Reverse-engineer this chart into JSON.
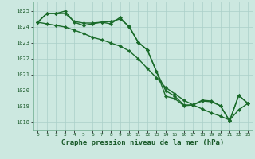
{
  "xlabel": "Graphe pression niveau de la mer (hPa)",
  "background_color": "#cce8e0",
  "grid_color": "#aacfc8",
  "line_color": "#1a6b2a",
  "xlim": [
    -0.5,
    23.5
  ],
  "ylim": [
    1017.5,
    1025.6
  ],
  "yticks": [
    1018,
    1019,
    1020,
    1021,
    1022,
    1023,
    1024,
    1025
  ],
  "xticks": [
    0,
    1,
    2,
    3,
    4,
    5,
    6,
    7,
    8,
    9,
    10,
    11,
    12,
    13,
    14,
    15,
    16,
    17,
    18,
    19,
    20,
    21,
    22,
    23
  ],
  "line1": [
    1024.3,
    1024.85,
    1024.85,
    1024.85,
    1024.35,
    1024.25,
    1024.25,
    1024.3,
    1024.35,
    1024.5,
    1024.05,
    1023.05,
    1022.55,
    1021.2,
    1019.65,
    1019.5,
    1019.05,
    1019.1,
    1019.35,
    1019.3,
    1019.05,
    1018.1,
    1019.7,
    1019.2
  ],
  "line2": [
    1024.3,
    1024.85,
    1024.85,
    1025.0,
    1024.3,
    1024.1,
    1024.2,
    1024.3,
    1024.2,
    1024.6,
    1024.0,
    1023.05,
    1022.55,
    1021.2,
    1020.0,
    1019.65,
    1019.1,
    1019.1,
    1019.4,
    1019.35,
    1019.05,
    1018.1,
    1019.7,
    1019.2
  ],
  "line3": [
    1024.3,
    1024.2,
    1024.1,
    1024.0,
    1023.8,
    1023.6,
    1023.35,
    1023.2,
    1023.0,
    1022.8,
    1022.5,
    1022.0,
    1021.4,
    1020.8,
    1020.2,
    1019.8,
    1019.4,
    1019.1,
    1018.85,
    1018.6,
    1018.4,
    1018.15,
    1018.8,
    1019.2
  ],
  "markersize": 2.2,
  "linewidth": 1.0
}
